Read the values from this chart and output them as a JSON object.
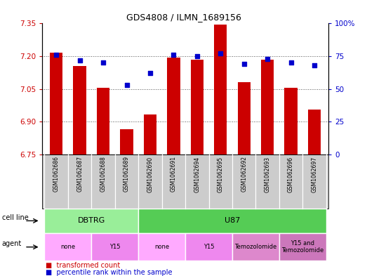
{
  "title": "GDS4808 / ILMN_1689156",
  "samples": [
    "GSM1062686",
    "GSM1062687",
    "GSM1062688",
    "GSM1062689",
    "GSM1062690",
    "GSM1062691",
    "GSM1062694",
    "GSM1062695",
    "GSM1062692",
    "GSM1062693",
    "GSM1062696",
    "GSM1062697"
  ],
  "red_values": [
    7.215,
    7.155,
    7.055,
    6.865,
    6.935,
    7.195,
    7.185,
    7.345,
    7.08,
    7.185,
    7.055,
    6.955
  ],
  "blue_values": [
    76,
    72,
    70,
    53,
    62,
    76,
    75,
    77,
    69,
    73,
    70,
    68
  ],
  "y_min": 6.75,
  "y_max": 7.35,
  "y_ticks": [
    6.75,
    6.9,
    7.05,
    7.2,
    7.35
  ],
  "y2_ticks": [
    0,
    25,
    50,
    75,
    100
  ],
  "bar_color": "#cc0000",
  "dot_color": "#0000cc",
  "bar_bottom": 6.75,
  "cell_line_groups": [
    {
      "label": "DBTRG",
      "start": 0,
      "end": 3,
      "color": "#99ee99"
    },
    {
      "label": "U87",
      "start": 4,
      "end": 11,
      "color": "#55cc55"
    }
  ],
  "agent_groups": [
    {
      "label": "none",
      "start": 0,
      "end": 1,
      "color": "#ffaaff"
    },
    {
      "label": "Y15",
      "start": 2,
      "end": 3,
      "color": "#ee88ee"
    },
    {
      "label": "none",
      "start": 4,
      "end": 5,
      "color": "#ffaaff"
    },
    {
      "label": "Y15",
      "start": 6,
      "end": 7,
      "color": "#ee88ee"
    },
    {
      "label": "Temozolomide",
      "start": 8,
      "end": 9,
      "color": "#dd88cc"
    },
    {
      "label": "Y15 and\nTemozolomide",
      "start": 10,
      "end": 11,
      "color": "#cc77bb"
    }
  ],
  "legend_red": "transformed count",
  "legend_blue": "percentile rank within the sample",
  "cell_line_label": "cell line",
  "agent_label": "agent",
  "bg_color": "#ffffff",
  "grid_color": "#555555",
  "tick_color_left": "#cc0000",
  "tick_color_right": "#0000cc",
  "sample_bg_color": "#cccccc",
  "sample_sep_color": "#ffffff"
}
